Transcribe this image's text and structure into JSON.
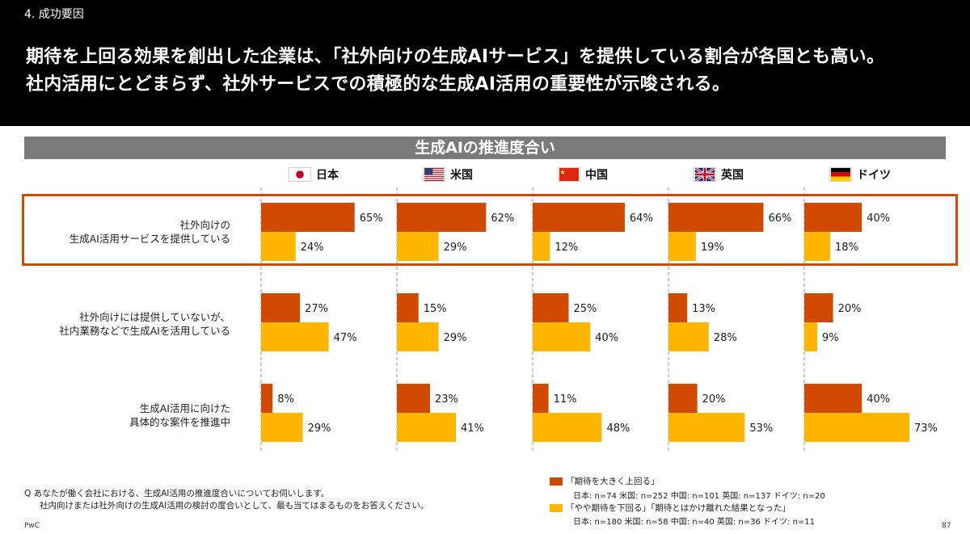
{
  "header": {
    "section": "4. 成功要因",
    "headline_line1": "期待を上回る効果を創出した企業は、「社外向けの生成AIサービス」を提供している割合が各国とも高い。",
    "headline_line2": "社内活用にとどまらず、社外サービスでの積極的な生成AI活用の重要性が示唆される。"
  },
  "banner": "生成AIの推進度合い",
  "countries": [
    {
      "name": "日本",
      "flag": "japan-flag"
    },
    {
      "name": "米国",
      "flag": "us-flag"
    },
    {
      "name": "中国",
      "flag": "china-flag"
    },
    {
      "name": "英国",
      "flag": "uk-flag"
    },
    {
      "name": "ドイツ",
      "flag": "germany-flag"
    }
  ],
  "row_labels": [
    [
      "社外向けの",
      "生成AI活用サービスを提供している"
    ],
    [
      "社外向けには提供していないが、",
      "社内業務などで生成AIを活用している"
    ],
    [
      "生成AI活用に向けた",
      "具体的な案件を推進中"
    ]
  ],
  "colors": {
    "exceed": "#d04a02",
    "below": "#ffb600",
    "highlight": "#d04a02",
    "banner": "#7a7a7a"
  },
  "chart_data": {
    "type": "bar",
    "orientation": "horizontal",
    "title": "生成AIの推進度合い",
    "categories": [
      "日本",
      "米国",
      "中国",
      "英国",
      "ドイツ"
    ],
    "rows": [
      {
        "label": "社外向けの生成AI活用サービスを提供している",
        "series": [
          {
            "name": "「期待を大きく上回る」",
            "values": [
              65,
              62,
              64,
              66,
              40
            ]
          },
          {
            "name": "「やや期待を下回る」「期待とはかけ離れた結果となった」",
            "values": [
              24,
              29,
              12,
              19,
              18
            ]
          }
        ]
      },
      {
        "label": "社外向けには提供していないが、社内業務などで生成AIを活用している",
        "series": [
          {
            "name": "「期待を大きく上回る」",
            "values": [
              27,
              15,
              25,
              13,
              20
            ]
          },
          {
            "name": "「やや期待を下回る」「期待とはかけ離れた結果となった」",
            "values": [
              47,
              29,
              40,
              28,
              9
            ]
          }
        ]
      },
      {
        "label": "生成AI活用に向けた具体的な案件を推進中",
        "series": [
          {
            "name": "「期待を大きく上回る」",
            "values": [
              8,
              23,
              11,
              20,
              40
            ]
          },
          {
            "name": "「やや期待を下回る」「期待とはかけ離れた結果となった」",
            "values": [
              29,
              41,
              48,
              53,
              73
            ]
          }
        ]
      }
    ],
    "value_suffix": "%",
    "highlighted_row": 0
  },
  "note": {
    "q_line1": "Q  あなたが働く会社における、生成AI活用の推進度合いについてお伺いします。",
    "q_line2": "社内向けまたは社外向けの生成AI活用の検討の度合いとして、最も当てはまるものをお答えください。"
  },
  "legend": [
    {
      "label": "「期待を大きく上回る」",
      "sample": "日本: n=74 米国: n=252 中国: n=101 英国: n=137 ドイツ: n=20"
    },
    {
      "label": "「やや期待を下回る」「期待とはかけ離れた結果となった」",
      "sample": "日本: n=180 米国: n=58 中国: n=40 英国: n=36 ドイツ: n=11"
    }
  ],
  "footer": {
    "brand": "PwC",
    "page": "87"
  }
}
